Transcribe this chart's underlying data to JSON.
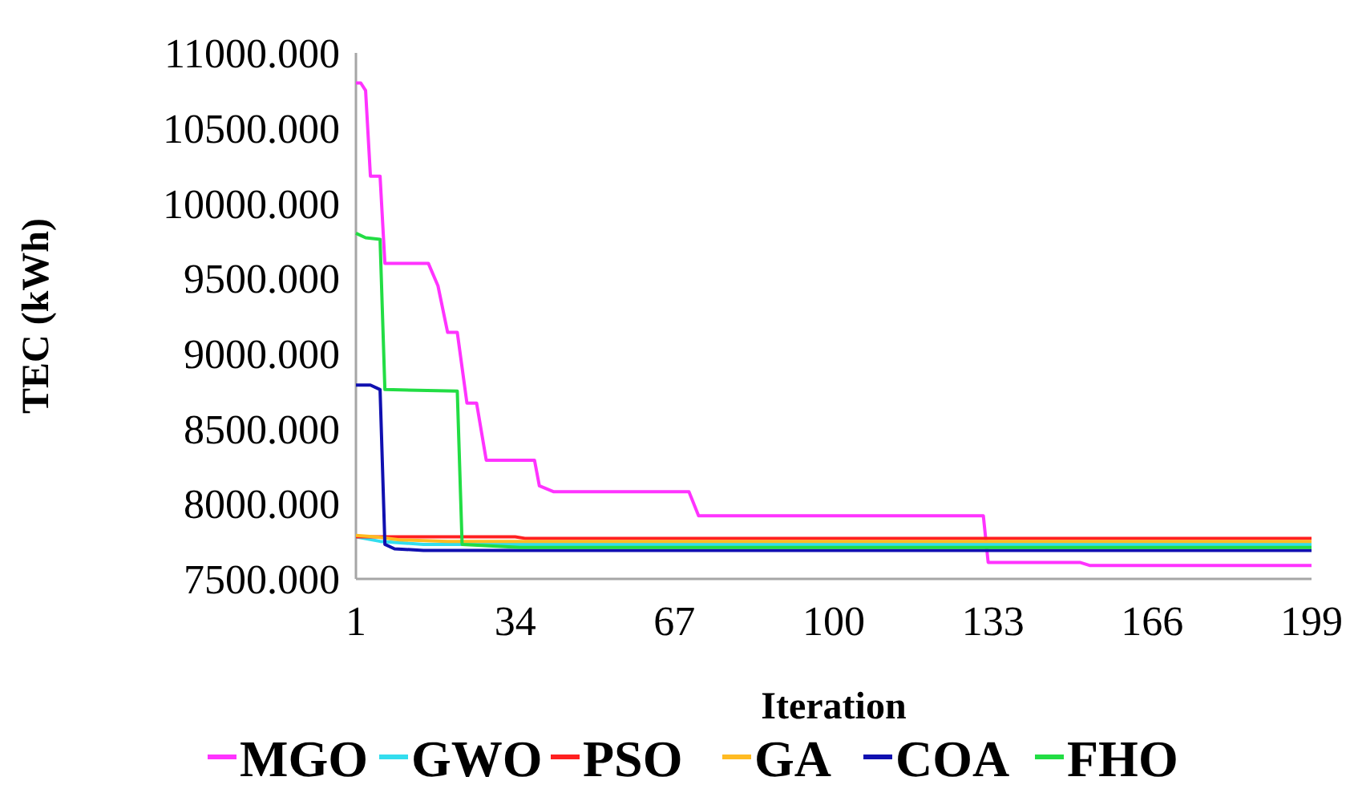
{
  "chart_data": {
    "type": "line",
    "xlabel": "Iteration",
    "ylabel": "TEC (kWh)",
    "xlim": [
      1,
      199
    ],
    "xticks": [
      1,
      34,
      67,
      100,
      133,
      166,
      199
    ],
    "ylim": [
      7500,
      11000
    ],
    "yticks": [
      {
        "value": 7500,
        "label": "7500.000"
      },
      {
        "value": 8000,
        "label": "8000.000"
      },
      {
        "value": 8500,
        "label": "8500.000"
      },
      {
        "value": 9000,
        "label": "9000.000"
      },
      {
        "value": 9500,
        "label": "9500.000"
      },
      {
        "value": 10000,
        "label": "10000.000"
      },
      {
        "value": 10500,
        "label": "10500.000"
      },
      {
        "value": 11000,
        "label": "11000.000"
      }
    ],
    "grid": false,
    "legend": "bottom",
    "marker": "none",
    "line_style": "solid",
    "series": [
      {
        "name": "MGO",
        "color": "#ff33ff",
        "x": [
          1,
          2,
          3,
          4,
          6,
          7,
          16,
          18,
          20,
          22,
          24,
          26,
          28,
          38,
          39,
          42,
          70,
          72,
          131,
          132,
          151,
          153,
          199
        ],
        "values": [
          10800,
          10800,
          10750,
          10180,
          10180,
          9600,
          9600,
          9450,
          9140,
          9140,
          8670,
          8670,
          8290,
          8290,
          8120,
          8080,
          8080,
          7920,
          7920,
          7610,
          7610,
          7590,
          7590
        ]
      },
      {
        "name": "GWO",
        "color": "#33ddee",
        "x": [
          1,
          6,
          15,
          199
        ],
        "values": [
          7780,
          7750,
          7730,
          7730
        ]
      },
      {
        "name": "PSO",
        "color": "#ff2020",
        "x": [
          1,
          10,
          34,
          36,
          199
        ],
        "values": [
          7780,
          7780,
          7780,
          7770,
          7770
        ]
      },
      {
        "name": "GA",
        "color": "#ffbb22",
        "x": [
          1,
          5,
          10,
          20,
          199
        ],
        "values": [
          7790,
          7780,
          7760,
          7750,
          7750
        ]
      },
      {
        "name": "COA",
        "color": "#1010b0",
        "x": [
          1,
          4,
          6,
          7,
          9,
          15,
          199
        ],
        "values": [
          8790,
          8790,
          8760,
          7730,
          7700,
          7690,
          7690
        ]
      },
      {
        "name": "FHO",
        "color": "#22dd44",
        "x": [
          1,
          3,
          6,
          7,
          22,
          23,
          35,
          199
        ],
        "values": [
          9800,
          9770,
          9760,
          8760,
          8750,
          7730,
          7710,
          7710
        ]
      }
    ]
  }
}
